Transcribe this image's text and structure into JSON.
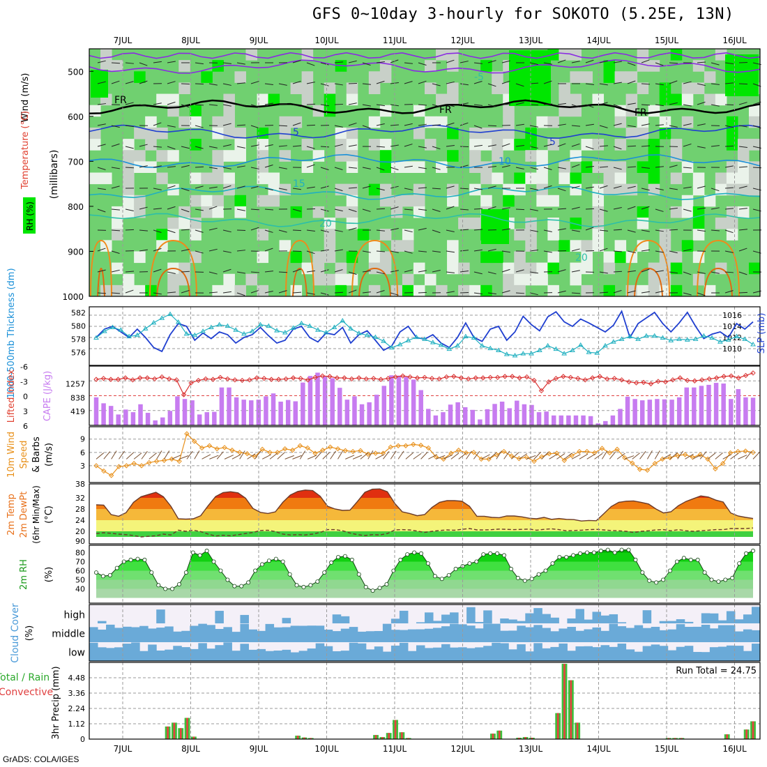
{
  "title": "GFS 0~10day 3-hourly for SOKOTO (5.25E, 13N)",
  "footer": "GrADS: COLA/IGES",
  "run_total_label": "Run Total = 24.75",
  "colors": {
    "purple": "#8a2be2",
    "blue": "#1f3fd0",
    "cyan": "#20b0c0",
    "orange": "#f08a1a",
    "green_dark": "#00e600",
    "green_mid": "#70d070",
    "grey": "#c8d0c8",
    "pale": "#eaf3ea",
    "cape_bar": "#c77cf0",
    "lifted": "#d93030",
    "wind10": "#e8901a",
    "barb": "#7a5030",
    "cloud": "#6aaad8",
    "cloud_bg": "#f4f0f8",
    "precip_green": "#3cc03c",
    "precip_red": "#e84040"
  },
  "chart_data": [
    {
      "type": "heatmap",
      "panel": "pressure-time cross section",
      "ylabel": "(millibars)",
      "side_labels": [
        "Wind (m/s)",
        "Temperature (°C)",
        "RH (%)"
      ],
      "ylim": [
        1000,
        450
      ],
      "yticks": [
        500,
        600,
        700,
        800,
        900,
        1000
      ],
      "x_dates": [
        "7JUL",
        "8JUL",
        "9JUL",
        "10JUL",
        "11JUL",
        "12JUL",
        "13JUL",
        "14JUL",
        "15JUL",
        "16JUL"
      ],
      "contour_labels": [
        "-5",
        "FR",
        "FR",
        "FR",
        "5",
        "5",
        "10",
        "15",
        "20",
        "20"
      ],
      "isotherms": [
        {
          "name": "-5",
          "level": 490
        },
        {
          "name": "0",
          "level": 580
        },
        {
          "name": "5",
          "level": 635
        },
        {
          "name": "10",
          "level": 700
        },
        {
          "name": "15",
          "level": 770
        },
        {
          "name": "20",
          "level": 830
        }
      ]
    },
    {
      "type": "line",
      "panel": "thickness and slp",
      "ylabel_left": "1000-500mb Thickness (dm)",
      "ylabel_right": "SLP (mb)",
      "yticks_left": [
        576,
        578,
        580,
        582
      ],
      "yticks_right": [
        1010,
        1012,
        1014,
        1016
      ],
      "series": [
        {
          "name": "SLP (mb)",
          "axis": "right",
          "values": [
            1012.0,
            1013.5,
            1014.0,
            1013.0,
            1012.0,
            1013.5,
            1012.0,
            1010.2,
            1009.5,
            1012.5,
            1014.5,
            1014.0,
            1011.5,
            1012.8,
            1011.8,
            1013.0,
            1012.5,
            1011.0,
            1012.0,
            1012.5,
            1013.8,
            1012.3,
            1011.0,
            1011.5,
            1013.5,
            1014.0,
            1012.0,
            1011.2,
            1012.8,
            1012.5,
            1013.8,
            1011.0,
            1012.5,
            1013.2,
            1011.5,
            1009.7,
            1010.5,
            1013.0,
            1014.0,
            1012.0,
            1011.7,
            1012.5,
            1011.0,
            1010.2,
            1012.0,
            1014.6,
            1012.0,
            1011.3,
            1013.5,
            1014.0,
            1011.5,
            1013.0,
            1015.8,
            1014.3,
            1013.2,
            1015.7,
            1016.6,
            1014.8,
            1014.0,
            1015.3,
            1014.6,
            1013.8,
            1013.0,
            1014.2,
            1016.7,
            1012.0,
            1014.5,
            1015.5,
            1016.5,
            1014.5,
            1013.0,
            1014.6,
            1016.5,
            1014.0,
            1011.8,
            1012.6,
            1013.0,
            1012.0,
            1014.5,
            1013.5,
            1014.8
          ]
        },
        {
          "name": "Thickness (dm)",
          "axis": "left",
          "values": [
            578.2,
            579.2,
            579.8,
            579.4,
            578.4,
            578.6,
            579.6,
            580.5,
            581.2,
            581.8,
            580.6,
            578.8,
            578.6,
            579.2,
            579.8,
            580.2,
            580.0,
            579.4,
            578.8,
            579.2,
            580.2,
            580.0,
            579.3,
            579.0,
            579.7,
            580.4,
            580.0,
            579.4,
            579.0,
            579.8,
            580.8,
            579.6,
            578.9,
            578.6,
            578.3,
            577.7,
            576.7,
            577.2,
            577.8,
            578.3,
            578.0,
            577.5,
            577.1,
            576.5,
            577.0,
            578.4,
            578.2,
            577.0,
            576.6,
            576.3,
            575.7,
            575.5,
            575.8,
            575.8,
            576.3,
            577.0,
            576.5,
            575.8,
            576.3,
            577.1,
            576.0,
            575.9,
            577.0,
            577.6,
            578.0,
            578.4,
            578.0,
            578.5,
            578.5,
            578.2,
            577.8,
            578.0,
            577.9,
            578.0,
            578.5,
            578.2,
            577.6,
            577.9,
            578.4,
            578.0,
            577.2
          ]
        }
      ]
    },
    {
      "type": "bar",
      "panel": "cape and lifted index",
      "ylabel_left": "Lifted Index",
      "ylabel_right": "CAPE (J/kg)",
      "yticks_left": [
        "-6",
        "-3",
        "0",
        "3",
        "6"
      ],
      "yticks_right": [
        "419",
        "838",
        "1257"
      ],
      "series": [
        {
          "name": "CAPE (J/kg)",
          "values": [
            850,
            670,
            590,
            330,
            480,
            400,
            640,
            380,
            150,
            240,
            440,
            880,
            800,
            760,
            330,
            400,
            410,
            1150,
            1150,
            850,
            780,
            760,
            780,
            880,
            970,
            720,
            770,
            730,
            1300,
            1500,
            1600,
            1480,
            1430,
            1140,
            780,
            880,
            640,
            700,
            930,
            1200,
            1520,
            1510,
            1470,
            1390,
            1070,
            500,
            300,
            400,
            630,
            700,
            550,
            470,
            180,
            490,
            650,
            720,
            520,
            750,
            640,
            620,
            400,
            420,
            300,
            300,
            300,
            300,
            300,
            280,
            60,
            130,
            300,
            500,
            870,
            800,
            760,
            780,
            800,
            790,
            780,
            850,
            1150,
            1150,
            1200,
            1230,
            1290,
            1270,
            800,
            1100,
            850,
            840
          ]
        },
        {
          "name": "Lifted Index",
          "values": [
            -3.3,
            -3.5,
            -3.3,
            -3.3,
            -3.6,
            -3.2,
            -3.6,
            -3.6,
            -3.4,
            -3.8,
            -3.4,
            -3.2,
            -0.2,
            -2.6,
            -3.1,
            -3.4,
            -3.3,
            -3.7,
            -3.4,
            -3.2,
            -3.1,
            -3.2,
            -3.6,
            -3.5,
            -3.3,
            -3.3,
            -3.4,
            -3.6,
            -3.5,
            -3.2,
            -3.7,
            -4.0,
            -3.9,
            -3.6,
            -3.6,
            -3.4,
            -3.6,
            -3.4,
            -3.5,
            -3.3,
            -3.5,
            -3.8,
            -4.0,
            -3.8,
            -3.6,
            -3.7,
            -3.5,
            -3.4,
            -3.8,
            -3.9,
            -3.6,
            -3.4,
            -3.6,
            -3.6,
            -3.7,
            -3.7,
            -3.9,
            -3.9,
            -3.6,
            -3.8,
            -3.1,
            -1.0,
            -2.8,
            -3.5,
            -3.9,
            -3.7,
            -3.5,
            -3.2,
            -3.6,
            -3.9,
            -3.4,
            -3.5,
            -3.2,
            -2.8,
            -2.6,
            -2.7,
            -2.4,
            -2.9,
            -2.8,
            -3.2,
            -3.6,
            -3.1,
            -3.0,
            -3.2,
            -3.4,
            -3.6,
            -3.9,
            -4.0,
            -3.6,
            -4.1,
            -4.6
          ]
        }
      ]
    },
    {
      "type": "line",
      "panel": "10m wind",
      "ylabel": "10m Wind Speed & Barbs (m/s)",
      "yticks": [
        3,
        6,
        9
      ],
      "series": [
        {
          "name": "10m Wind Speed",
          "values": [
            3.0,
            1.8,
            0.8,
            2.8,
            3.0,
            3.5,
            3.0,
            3.7,
            4.0,
            4.2,
            4.5,
            4.0,
            10.2,
            8.5,
            7.0,
            7.5,
            6.8,
            7.1,
            6.5,
            6.0,
            5.7,
            5.0,
            6.7,
            6.0,
            6.0,
            6.8,
            6.5,
            7.5,
            7.0,
            5.8,
            6.5,
            7.2,
            6.8,
            6.4,
            6.2,
            6.4,
            5.6,
            5.8,
            5.8,
            7.2,
            7.5,
            7.5,
            7.8,
            7.6,
            7.0,
            5.0,
            4.5,
            5.8,
            6.5,
            5.9,
            6.0,
            4.5,
            4.5,
            5.5,
            6.2,
            5.2,
            4.6,
            4.9,
            4.0,
            5.0,
            5.7,
            5.8,
            4.2,
            5.3,
            6.2,
            6.2,
            5.9,
            6.9,
            5.9,
            6.7,
            4.8,
            3.6,
            2.2,
            2.0,
            3.5,
            4.5,
            4.8,
            5.3,
            5.5,
            4.9,
            5.5,
            4.5,
            2.3,
            3.5,
            5.9,
            6.2,
            6.3,
            6.0
          ]
        }
      ]
    },
    {
      "type": "area",
      "panel": "2m temperature",
      "ylabel": "2m Temp 2m DewPt (6hr Min/Max) (°C)",
      "yticks": [
        20,
        24,
        28,
        32
      ],
      "series": [
        {
          "name": "2m Temp",
          "values": [
            29.5,
            29.4,
            26.0,
            25.4,
            26.7,
            30.4,
            32.4,
            33.2,
            34.0,
            32.4,
            29.0,
            24.5,
            24.4,
            24.5,
            25.6,
            29.2,
            32.5,
            33.9,
            34.2,
            33.8,
            31.9,
            28.2,
            26.8,
            26.4,
            27.0,
            30.4,
            33.0,
            34.3,
            34.8,
            34.6,
            32.6,
            29.0,
            28.0,
            27.5,
            27.6,
            30.7,
            34.0,
            35.1,
            35.2,
            34.2,
            30.0,
            27.0,
            26.4,
            25.6,
            26.0,
            28.6,
            30.4,
            31.0,
            31.0,
            30.8,
            29.0,
            25.4,
            25.4,
            25.0,
            24.9,
            25.5,
            25.5,
            25.2,
            24.7,
            24.5,
            25.0,
            24.3,
            24.6,
            24.3,
            24.2,
            23.7,
            23.9,
            23.8,
            26.3,
            28.9,
            30.4,
            30.8,
            30.9,
            30.4,
            29.8,
            28.0,
            26.6,
            27.0,
            29.2,
            30.7,
            31.7,
            32.7,
            32.3,
            31.2,
            30.5,
            26.6,
            25.5,
            25.0,
            24.6
          ]
        },
        {
          "name": "2m DewPt",
          "values": [
            19.2,
            19.5,
            19.3,
            19.0,
            18.8,
            18.5,
            18.0,
            18.2,
            18.4,
            19.0,
            18.7,
            20.4,
            20.0,
            20.4,
            19.9,
            19.0,
            18.3,
            18.6,
            18.4,
            18.8,
            19.2,
            19.6,
            20.3,
            20.4,
            19.9,
            19.0,
            18.7,
            18.8,
            18.7,
            19.0,
            19.6,
            20.6,
            20.6,
            20.2,
            19.4,
            18.8,
            18.5,
            18.8,
            18.7,
            19.2,
            20.5,
            20.6,
            20.5,
            20.1,
            19.6,
            20.0,
            20.3,
            20.5,
            20.4,
            20.7,
            21.0,
            20.5,
            20.5,
            20.6,
            20.8,
            20.7,
            20.6,
            20.7,
            20.8,
            20.4,
            20.7,
            20.9,
            20.6,
            20.2,
            20.3,
            20.4,
            20.6,
            20.7,
            20.5,
            20.3,
            20.2,
            20.0,
            19.6,
            20.0,
            20.2,
            20.5,
            20.6,
            20.2,
            20.6,
            20.2,
            20.0,
            20.2,
            20.4,
            20.6,
            20.6,
            21.0,
            21.0,
            21.0,
            21.2
          ]
        }
      ]
    },
    {
      "type": "area",
      "panel": "2m relative humidity",
      "ylabel": "2m RH (%)",
      "yticks": [
        40,
        50,
        60,
        70,
        80
      ],
      "series": [
        {
          "name": "2m RH",
          "values": [
            58,
            54,
            55,
            63,
            70,
            72,
            73,
            72,
            58,
            44,
            40,
            40,
            45,
            58,
            80,
            77,
            82,
            70,
            60,
            50,
            43,
            43,
            47,
            60,
            67,
            71,
            73,
            70,
            56,
            44,
            42,
            44,
            48,
            58,
            69,
            75,
            76,
            72,
            56,
            42,
            38,
            41,
            45,
            60,
            72,
            78,
            80,
            79,
            68,
            54,
            51,
            55,
            62,
            65,
            68,
            70,
            78,
            79,
            79,
            77,
            62,
            52,
            49,
            51,
            56,
            60,
            68,
            75,
            75,
            77,
            79,
            80,
            80,
            82,
            83,
            80,
            83,
            83,
            72,
            58,
            49,
            47,
            50,
            60,
            70,
            74,
            72,
            72,
            58,
            50,
            48,
            50,
            52,
            68,
            79,
            82
          ]
        }
      ]
    },
    {
      "type": "heatmap",
      "panel": "cloud cover",
      "ylabel": "Cloud Cover (%)",
      "rows": [
        "high",
        "middle",
        "low"
      ]
    },
    {
      "type": "bar",
      "panel": "3hr precipitation",
      "ylabel": "3hr Precip (mm)",
      "side_label_green": "Total / Rain",
      "side_label_red": "Convective",
      "yticks": [
        "1.12",
        "2.24",
        "3.36",
        "4.48"
      ],
      "ylim": [
        0,
        5.6
      ],
      "series": [
        {
          "name": "Total / Rain",
          "values": [
            0,
            0,
            0,
            0,
            0,
            0,
            0,
            0,
            0,
            0,
            0,
            0.92,
            1.2,
            0.8,
            1.55,
            0.18,
            0,
            0,
            0,
            0,
            0,
            0,
            0,
            0,
            0,
            0,
            0,
            0,
            0,
            0,
            0,
            0.25,
            0.12,
            0.08,
            0,
            0,
            0,
            0,
            0,
            0,
            0,
            0,
            0,
            0.3,
            0.15,
            0.45,
            1.4,
            0.5,
            0.08,
            0,
            0,
            0,
            0,
            0,
            0,
            0,
            0,
            0,
            0,
            0,
            0,
            0.4,
            0.62,
            0,
            0,
            0.1,
            0.15,
            0.1,
            0,
            0,
            0,
            1.9,
            5.5,
            4.3,
            1.2,
            0,
            0,
            0,
            0,
            0,
            0,
            0,
            0,
            0,
            0,
            0,
            0,
            0,
            0.08,
            0.08,
            0.08,
            0,
            0,
            0,
            0,
            0,
            0,
            0.35,
            0,
            0,
            0.7,
            1.3
          ]
        }
      ]
    }
  ]
}
